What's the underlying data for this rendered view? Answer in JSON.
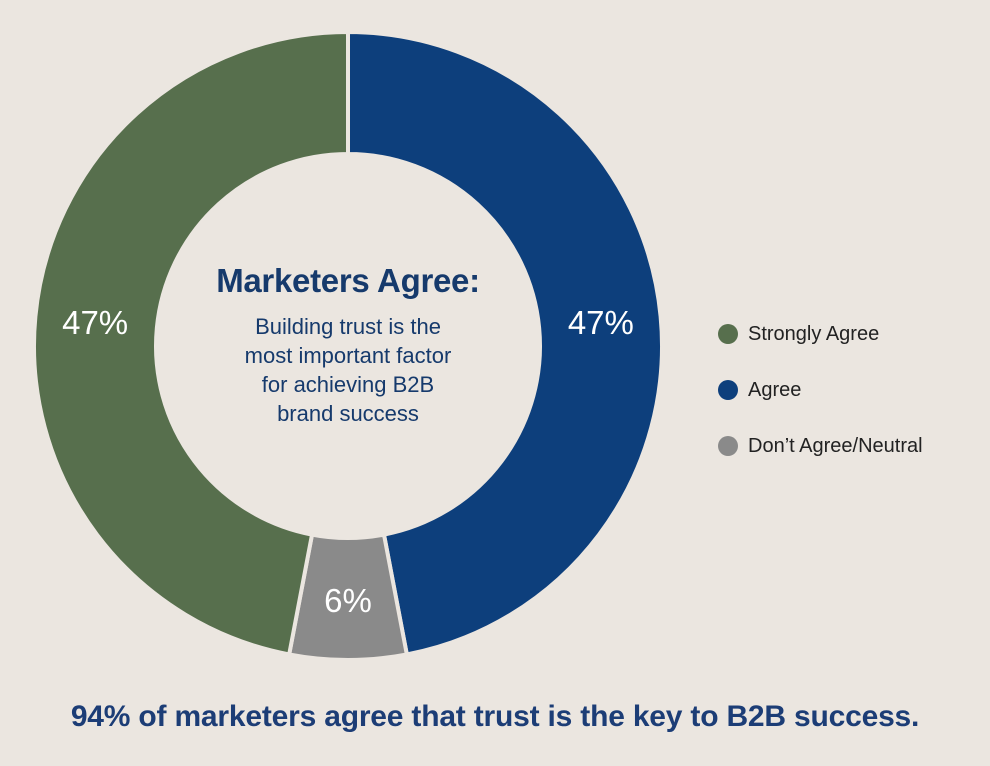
{
  "chart_data": {
    "type": "pie",
    "donut": true,
    "categories": [
      "Strongly Agree",
      "Agree",
      "Don’t Agree/Neutral"
    ],
    "values": [
      47,
      47,
      6
    ],
    "value_labels": [
      "47%",
      "47%",
      "6%"
    ],
    "colors": [
      "#576f4d",
      "#0d3f7c",
      "#8a8a8a"
    ],
    "center_title": "Marketers Agree:",
    "center_subtitle_lines": [
      "Building trust is the",
      "most important factor",
      "for achieving B2B",
      "brand success"
    ],
    "legend_position": "right"
  },
  "footer_text": "94% of marketers agree that trust is the key to B2B success.",
  "background_color": "#ebe6e0"
}
